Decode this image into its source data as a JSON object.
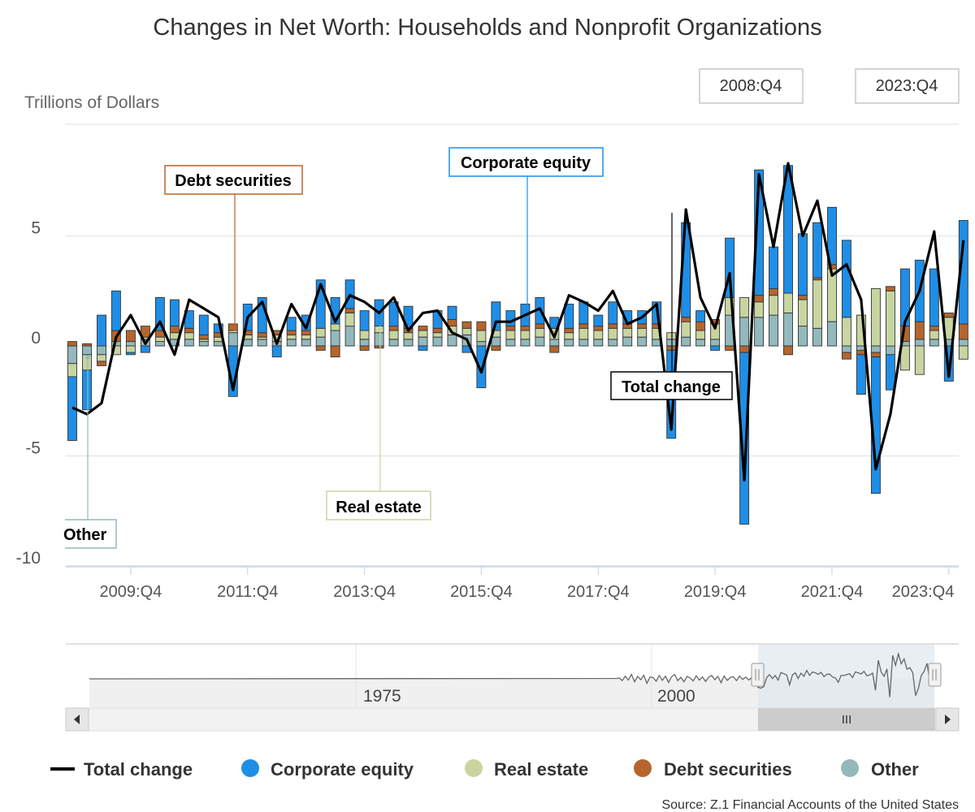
{
  "chart_data": {
    "type": "bar",
    "title": "Changes in Net Worth: Households and Nonprofit Organizations",
    "ylabel": "Trillions of Dollars",
    "ylim": [
      -10,
      10
    ],
    "y_ticks": [
      5,
      0,
      -5,
      -10
    ],
    "y_tick_labels": [
      "5",
      "0",
      "-5",
      "-10"
    ],
    "x_tick_labels": [
      "2009:Q4",
      "2011:Q4",
      "2013:Q4",
      "2015:Q4",
      "2017:Q4",
      "2019:Q4",
      "2021:Q4",
      "2023:Q4"
    ],
    "x_tick_quarters": [
      4,
      12,
      20,
      28,
      36,
      44,
      52,
      60
    ],
    "range_start": "2008:Q4",
    "range_end": "2023:Q4",
    "stacked": true,
    "grid": true,
    "legend_position": "bottom",
    "categories": [
      "2008:Q4",
      "2009:Q1",
      "2009:Q2",
      "2009:Q3",
      "2009:Q4",
      "2010:Q1",
      "2010:Q2",
      "2010:Q3",
      "2010:Q4",
      "2011:Q1",
      "2011:Q2",
      "2011:Q3",
      "2011:Q4",
      "2012:Q1",
      "2012:Q2",
      "2012:Q3",
      "2012:Q4",
      "2013:Q1",
      "2013:Q2",
      "2013:Q3",
      "2013:Q4",
      "2014:Q1",
      "2014:Q2",
      "2014:Q3",
      "2014:Q4",
      "2015:Q1",
      "2015:Q2",
      "2015:Q3",
      "2015:Q4",
      "2016:Q1",
      "2016:Q2",
      "2016:Q3",
      "2016:Q4",
      "2017:Q1",
      "2017:Q2",
      "2017:Q3",
      "2017:Q4",
      "2018:Q1",
      "2018:Q2",
      "2018:Q3",
      "2018:Q4",
      "2019:Q1",
      "2019:Q2",
      "2019:Q3",
      "2019:Q4",
      "2020:Q1",
      "2020:Q2",
      "2020:Q3",
      "2020:Q4",
      "2021:Q1",
      "2021:Q2",
      "2021:Q3",
      "2021:Q4",
      "2022:Q1",
      "2022:Q2",
      "2022:Q3",
      "2022:Q4",
      "2023:Q1",
      "2023:Q2",
      "2023:Q3",
      "2023:Q4",
      "2024:Q1"
    ],
    "series": [
      {
        "name": "Corporate equity",
        "color": "#1f8ee6",
        "values": [
          -2.9,
          -1.8,
          1.4,
          1.8,
          -0.1,
          -0.3,
          1.5,
          1.2,
          0.8,
          0.9,
          0.4,
          -2.3,
          1.2,
          1.6,
          -0.5,
          0.6,
          0.7,
          2.2,
          1.2,
          1.3,
          0.9,
          1.2,
          1.1,
          1.0,
          -0.2,
          0.8,
          0.6,
          -0.3,
          -1.9,
          1.3,
          0.7,
          1.0,
          1.2,
          0.5,
          1.1,
          1.0,
          0.5,
          1.0,
          0.6,
          0.6,
          1.0,
          -4.0,
          4.3,
          0.5,
          -0.2,
          2.7,
          -7.8,
          5.7,
          1.9,
          5.8,
          2.8,
          2.5,
          2.6,
          3.5,
          -1.8,
          -6.2,
          -1.6,
          2.6,
          2.8,
          2.6,
          -1.6,
          4.7
        ]
      },
      {
        "name": "Real estate",
        "color": "#c8d5a0",
        "values": [
          -0.6,
          -0.7,
          -0.3,
          -0.4,
          -0.3,
          0.1,
          0.2,
          0.3,
          0.3,
          0.1,
          0.2,
          0.1,
          0.2,
          0.1,
          0.3,
          0.2,
          0.2,
          0.4,
          0.3,
          0.6,
          0.4,
          0.3,
          0.4,
          0.3,
          0.3,
          0.2,
          0.4,
          0.3,
          0.5,
          0.3,
          0.4,
          0.4,
          0.4,
          0.5,
          0.3,
          0.5,
          0.4,
          0.5,
          0.4,
          0.4,
          0.5,
          0.3,
          0.7,
          0.4,
          0.7,
          0.8,
          0.9,
          0.7,
          0.9,
          0.9,
          1.2,
          2.2,
          2.4,
          1.3,
          1.4,
          2.6,
          2.5,
          -1.1,
          -1.3,
          0.4,
          1.0,
          -0.6
        ]
      },
      {
        "name": "Debt securities",
        "color": "#b5652d",
        "values": [
          0.2,
          0.1,
          -0.2,
          0.5,
          0.5,
          0.5,
          0.3,
          0.3,
          0.2,
          0.2,
          0.2,
          0.3,
          0.2,
          0.2,
          0.2,
          0.2,
          0.2,
          -0.2,
          -0.5,
          0.2,
          -0.2,
          -0.1,
          0.2,
          0.2,
          0.2,
          0.2,
          0.3,
          0.3,
          0.4,
          -0.2,
          0.2,
          0.2,
          0.2,
          -0.3,
          0.2,
          0.2,
          0.2,
          0.2,
          0.2,
          0.2,
          0.2,
          -0.2,
          0.2,
          0.4,
          0.2,
          -0.2,
          -0.3,
          0.3,
          0.3,
          -0.4,
          0.2,
          0.1,
          0.2,
          -0.3,
          -0.2,
          -0.2,
          0.2,
          0.7,
          0.8,
          0.2,
          0.2,
          0.7
        ]
      },
      {
        "name": "Other",
        "color": "#93b9bd",
        "values": [
          -0.8,
          -0.4,
          -0.4,
          0.2,
          0.2,
          0.3,
          0.2,
          0.3,
          0.3,
          0.2,
          0.2,
          0.6,
          0.3,
          0.3,
          0.2,
          0.3,
          0.3,
          0.4,
          0.7,
          0.9,
          0.3,
          0.6,
          0.3,
          0.3,
          0.4,
          0.4,
          0.5,
          0.5,
          0.2,
          0.4,
          0.3,
          0.3,
          0.4,
          0.3,
          0.3,
          0.3,
          0.3,
          0.3,
          0.4,
          0.4,
          0.3,
          0.3,
          0.4,
          0.3,
          0.3,
          1.4,
          1.3,
          1.3,
          1.4,
          1.5,
          0.9,
          0.8,
          1.1,
          -0.3,
          -0.2,
          -0.3,
          -0.4,
          0.2,
          0.3,
          0.3,
          0.3,
          0.3
        ]
      },
      {
        "name": "Total change",
        "color": "#000000",
        "type": "line",
        "values": [
          -2.8,
          -3.1,
          -2.6,
          0.4,
          1.4,
          0.1,
          1.1,
          -0.4,
          2.1,
          1.7,
          1.3,
          -2.0,
          1.3,
          2.0,
          0.1,
          1.9,
          0.8,
          2.8,
          1.1,
          2.3,
          2.0,
          1.5,
          2.2,
          0.7,
          1.5,
          1.6,
          0.6,
          0.3,
          -1.2,
          1.1,
          1.1,
          1.4,
          1.7,
          0.4,
          2.3,
          2.0,
          1.6,
          2.5,
          1.0,
          1.3,
          1.9,
          -3.8,
          6.2,
          2.2,
          0.8,
          3.3,
          -6.1,
          7.8,
          4.5,
          8.3,
          5.0,
          6.6,
          3.2,
          3.7,
          2.1,
          -5.6,
          -3.1,
          1.1,
          2.5,
          5.2,
          -1.4,
          4.8
        ]
      }
    ],
    "callouts": [
      "Debt securities",
      "Corporate equity",
      "Total change",
      "Real estate",
      "Other"
    ],
    "navigator": {
      "x_labels": [
        "1975",
        "2000"
      ],
      "handle_label": "III"
    },
    "source": "Source: Z.1 Financial Accounts of the United States"
  },
  "colors": {
    "corporate_equity": "#1f8ee6",
    "real_estate": "#c8d5a0",
    "debt_securities": "#b5652d",
    "other": "#93b9bd",
    "total_change": "#000000"
  },
  "icons": {
    "navigator_left": "arrow-left-icon",
    "navigator_right": "arrow-right-icon"
  }
}
